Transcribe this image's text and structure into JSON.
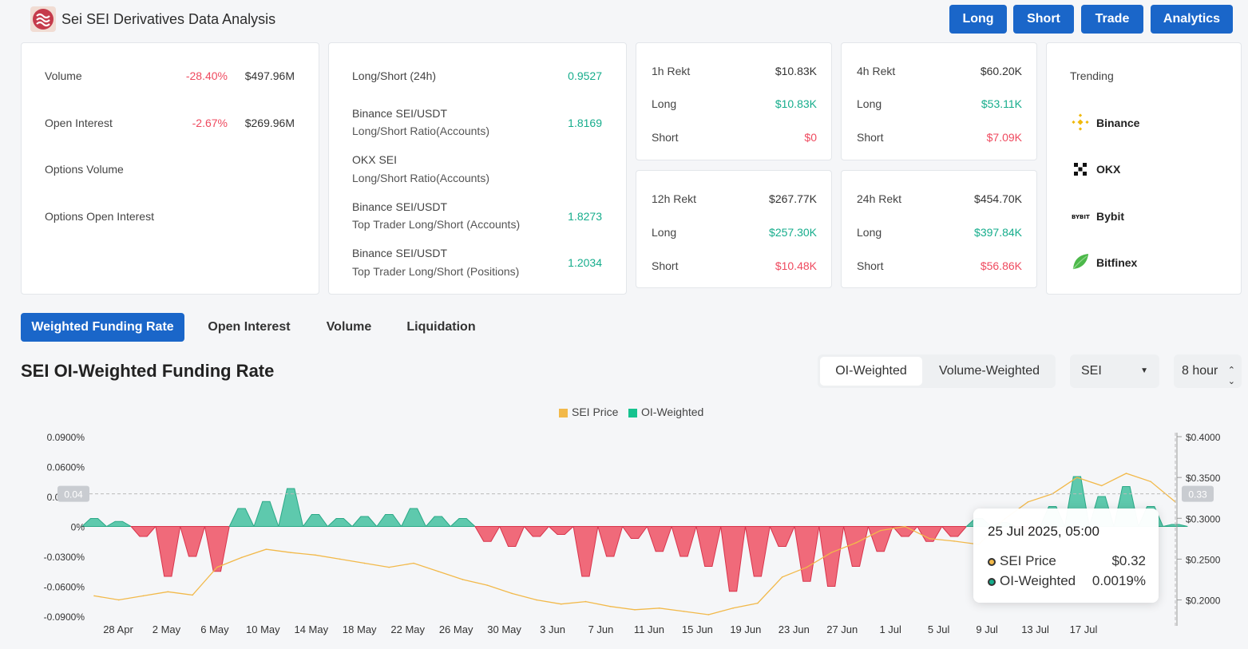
{
  "app": {
    "title": "Sei SEI Derivatives Data Analysis"
  },
  "nav": {
    "long": "Long",
    "short": "Short",
    "trade": "Trade",
    "analytics": "Analytics"
  },
  "overview": {
    "volume": {
      "label": "Volume",
      "change": "-28.40%",
      "value": "$497.96M"
    },
    "open_interest": {
      "label": "Open Interest",
      "change": "-2.67%",
      "value": "$269.96M"
    },
    "options_volume": {
      "label": "Options Volume"
    },
    "options_oi": {
      "label": "Options Open Interest"
    }
  },
  "ratios": [
    {
      "line1": "Long/Short (24h)",
      "line2": "",
      "value": "0.9527"
    },
    {
      "line1": "Binance SEI/USDT",
      "line2": "Long/Short Ratio(Accounts)",
      "value": "1.8169"
    },
    {
      "line1": "OKX SEI",
      "line2": "Long/Short Ratio(Accounts)",
      "value": ""
    },
    {
      "line1": "Binance SEI/USDT",
      "line2": "Top Trader Long/Short (Accounts)",
      "value": "1.8273"
    },
    {
      "line1": "Binance SEI/USDT",
      "line2": "Top Trader Long/Short (Positions)",
      "value": "1.2034"
    }
  ],
  "rekt": [
    {
      "title": "1h Rekt",
      "total": "$10.83K",
      "long_label": "Long",
      "long": "$10.83K",
      "short_label": "Short",
      "short": "$0"
    },
    {
      "title": "4h Rekt",
      "total": "$60.20K",
      "long_label": "Long",
      "long": "$53.11K",
      "short_label": "Short",
      "short": "$7.09K"
    },
    {
      "title": "12h Rekt",
      "total": "$267.77K",
      "long_label": "Long",
      "long": "$257.30K",
      "short_label": "Short",
      "short": "$10.48K"
    },
    {
      "title": "24h Rekt",
      "total": "$454.70K",
      "long_label": "Long",
      "long": "$397.84K",
      "short_label": "Short",
      "short": "$56.86K"
    }
  ],
  "trending": {
    "title": "Trending",
    "items": [
      {
        "name": "Binance",
        "icon": "binance-icon"
      },
      {
        "name": "OKX",
        "icon": "okx-icon"
      },
      {
        "name": "Bybit",
        "icon": "bybit-icon"
      },
      {
        "name": "Bitfinex",
        "icon": "bitfinex-icon"
      }
    ]
  },
  "tabs": [
    "Weighted Funding Rate",
    "Open Interest",
    "Volume",
    "Liquidation"
  ],
  "section": {
    "title": "SEI OI-Weighted Funding Rate"
  },
  "weighting": {
    "options": [
      "OI-Weighted",
      "Volume-Weighted"
    ],
    "selected": "OI-Weighted"
  },
  "coin_select": {
    "value": "SEI"
  },
  "interval_select": {
    "value": "8 hour"
  },
  "tooltip": {
    "date": "25 Jul 2025, 05:00",
    "price_label": "SEI Price",
    "price_value": "$0.32",
    "rate_label": "OI-Weighted",
    "rate_value": "0.0019%"
  },
  "crosshair": {
    "left_value": "0.04",
    "right_value": "0.33"
  },
  "colors": {
    "accent": "#1a66c9",
    "positive": "#16ad8c",
    "negative": "#ef4a5f",
    "price_line": "#f2b94a",
    "area_pos": "#5ec9ad",
    "area_neg": "#f06a7a"
  },
  "chart_data": {
    "type": "area",
    "legend": [
      "SEI Price",
      "OI-Weighted"
    ],
    "x_ticks": [
      "28 Apr",
      "2 May",
      "6 May",
      "10 May",
      "14 May",
      "18 May",
      "22 May",
      "26 May",
      "30 May",
      "3 Jun",
      "7 Jun",
      "11 Jun",
      "15 Jun",
      "19 Jun",
      "23 Jun",
      "27 Jun",
      "1 Jul",
      "5 Jul",
      "9 Jul",
      "13 Jul",
      "17 Jul"
    ],
    "y_left_ticks": [
      "0.0900%",
      "0.0600%",
      "0.0300%",
      "0%",
      "-0.0300%",
      "-0.0600%",
      "-0.0900%"
    ],
    "y_right_ticks": [
      "$0.4000",
      "$0.3500",
      "$0.3000",
      "$0.2500",
      "$0.2000"
    ],
    "ylim_left": [
      -0.09,
      0.09
    ],
    "ylim_right": [
      0.18,
      0.4
    ],
    "series": [
      {
        "name": "OI-Weighted",
        "unit": "%",
        "x": [
          "28 Apr",
          "30 Apr",
          "2 May",
          "4 May",
          "6 May",
          "8 May",
          "10 May",
          "12 May",
          "14 May",
          "16 May",
          "18 May",
          "20 May",
          "22 May",
          "24 May",
          "26 May",
          "28 May",
          "30 May",
          "1 Jun",
          "3 Jun",
          "5 Jun",
          "7 Jun",
          "9 Jun",
          "11 Jun",
          "13 Jun",
          "15 Jun",
          "17 Jun",
          "19 Jun",
          "21 Jun",
          "23 Jun",
          "25 Jun",
          "27 Jun",
          "29 Jun",
          "1 Jul",
          "3 Jul",
          "5 Jul",
          "7 Jul",
          "9 Jul",
          "11 Jul",
          "13 Jul",
          "15 Jul",
          "17 Jul",
          "19 Jul",
          "21 Jul",
          "23 Jul",
          "25 Jul"
        ],
        "values": [
          0.008,
          0.005,
          -0.01,
          -0.05,
          -0.03,
          -0.045,
          0.018,
          0.025,
          0.038,
          0.012,
          0.008,
          0.01,
          0.012,
          0.018,
          0.01,
          0.008,
          -0.015,
          -0.02,
          -0.01,
          -0.008,
          -0.05,
          -0.03,
          -0.012,
          -0.025,
          -0.03,
          -0.04,
          -0.065,
          -0.05,
          -0.02,
          -0.055,
          -0.06,
          -0.04,
          -0.025,
          -0.01,
          -0.015,
          -0.01,
          0.008,
          0.004,
          -0.005,
          0.02,
          0.05,
          0.03,
          0.04,
          0.02,
          0.002
        ]
      },
      {
        "name": "SEI Price",
        "unit": "$",
        "x": [
          "28 Apr",
          "30 Apr",
          "2 May",
          "4 May",
          "6 May",
          "8 May",
          "10 May",
          "12 May",
          "14 May",
          "16 May",
          "18 May",
          "20 May",
          "22 May",
          "24 May",
          "26 May",
          "28 May",
          "30 May",
          "1 Jun",
          "3 Jun",
          "5 Jun",
          "7 Jun",
          "9 Jun",
          "11 Jun",
          "13 Jun",
          "15 Jun",
          "17 Jun",
          "19 Jun",
          "21 Jun",
          "23 Jun",
          "25 Jun",
          "27 Jun",
          "29 Jun",
          "1 Jul",
          "3 Jul",
          "5 Jul",
          "7 Jul",
          "9 Jul",
          "11 Jul",
          "13 Jul",
          "15 Jul",
          "17 Jul",
          "19 Jul",
          "21 Jul",
          "23 Jul",
          "25 Jul"
        ],
        "values": [
          0.205,
          0.2,
          0.205,
          0.21,
          0.206,
          0.24,
          0.252,
          0.262,
          0.258,
          0.255,
          0.25,
          0.245,
          0.24,
          0.245,
          0.235,
          0.225,
          0.218,
          0.208,
          0.2,
          0.195,
          0.198,
          0.192,
          0.188,
          0.19,
          0.186,
          0.182,
          0.19,
          0.196,
          0.228,
          0.24,
          0.258,
          0.27,
          0.285,
          0.29,
          0.275,
          0.272,
          0.268,
          0.298,
          0.32,
          0.33,
          0.35,
          0.34,
          0.355,
          0.345,
          0.32
        ]
      }
    ]
  }
}
